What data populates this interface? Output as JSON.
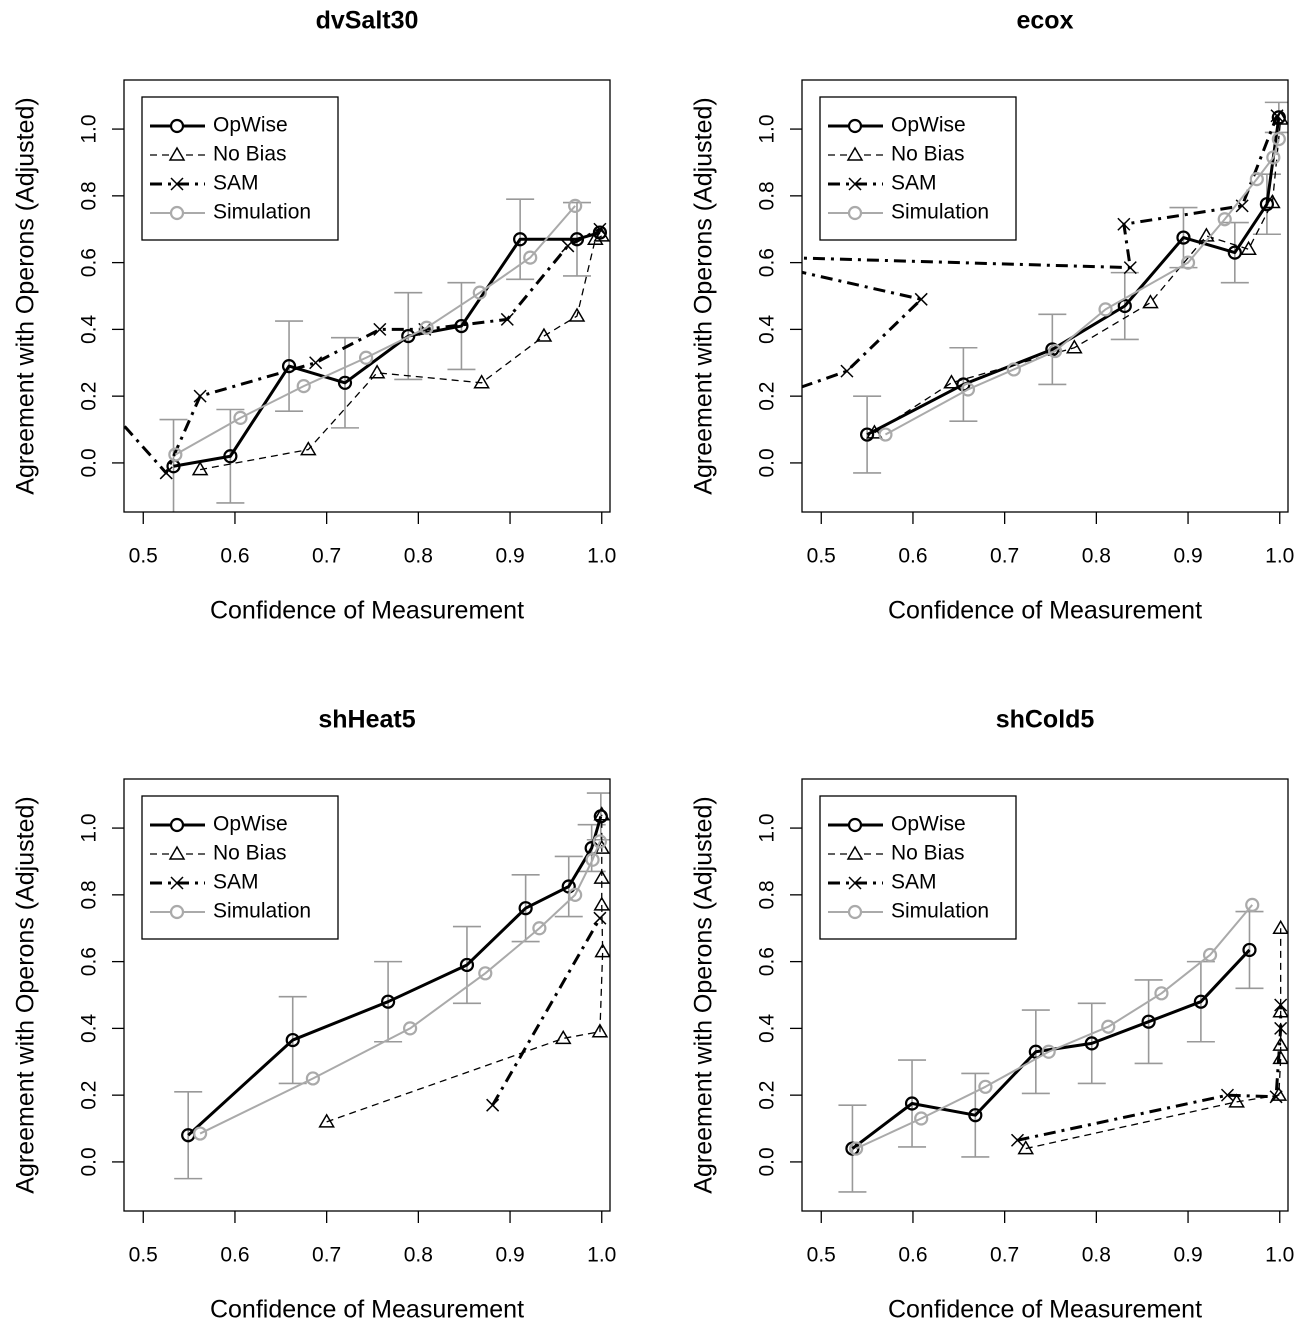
{
  "chart_data": [
    {
      "type": "line",
      "title": "dvSalt30",
      "x_label": "Confidence of Measurement",
      "y_label": "Agreement with Operons (Adjusted)",
      "xlim": [
        0.479,
        1.009
      ],
      "ylim": [
        -0.147,
        1.147
      ],
      "xticks": [
        0.5,
        0.6,
        0.7,
        0.8,
        0.9,
        {
          "value": 1,
          "label": "1.0"
        }
      ],
      "yticks": [
        {
          "value": 0,
          "label": "0.0"
        },
        0.2,
        0.4,
        0.6,
        0.8,
        {
          "value": 1,
          "label": "1.0"
        }
      ],
      "legend": "top-left",
      "error_color": "#999999",
      "series": [
        {
          "name": "OpWise",
          "color": "#000000",
          "line_style": "solid",
          "line_width": 3,
          "marker": "circle",
          "x": [
            0.533,
            0.595,
            0.659,
            0.72,
            0.789,
            0.847,
            0.911,
            0.973,
            0.998
          ],
          "values": [
            -0.01,
            0.02,
            0.29,
            0.24,
            0.38,
            0.41,
            0.67,
            0.67,
            0.69
          ],
          "errors": [
            0.14,
            0.14,
            0.135,
            0.135,
            0.13,
            0.13,
            0.12,
            0.11,
            null
          ]
        },
        {
          "name": "No Bias",
          "color": "#000000",
          "line_style": "dashed",
          "line_width": 1.3,
          "marker": "triangle",
          "x": [
            0.562,
            0.68,
            0.755,
            0.869,
            0.937,
            0.973,
            0.993,
            1.0
          ],
          "values": [
            -0.02,
            0.04,
            0.27,
            0.24,
            0.38,
            0.44,
            0.67,
            0.68
          ]
        },
        {
          "name": "SAM",
          "color": "#000000",
          "line_style": "dotdash",
          "line_width": 3,
          "marker": "x",
          "x": [
            0.46,
            0.525,
            0.562,
            0.688,
            0.758,
            0.807,
            0.897,
            0.963,
            0.998
          ],
          "values": [
            0.17,
            -0.03,
            0.2,
            0.3,
            0.4,
            0.4,
            0.43,
            0.65,
            0.7
          ]
        },
        {
          "name": "Simulation",
          "color": "#aaaaaa",
          "line_style": "solid",
          "line_width": 2,
          "marker": "circle",
          "x": [
            0.535,
            0.606,
            0.675,
            0.743,
            0.809,
            0.867,
            0.922,
            0.971
          ],
          "values": [
            0.025,
            0.135,
            0.23,
            0.315,
            0.405,
            0.51,
            0.615,
            0.77
          ]
        }
      ]
    },
    {
      "type": "line",
      "title": "ecox",
      "x_label": "Confidence of Measurement",
      "y_label": "Agreement with Operons (Adjusted)",
      "xlim": [
        0.479,
        1.009
      ],
      "ylim": [
        -0.147,
        1.147
      ],
      "xticks": [
        0.5,
        0.6,
        0.7,
        0.8,
        0.9,
        {
          "value": 1,
          "label": "1.0"
        }
      ],
      "yticks": [
        {
          "value": 0,
          "label": "0.0"
        },
        0.2,
        0.4,
        0.6,
        0.8,
        {
          "value": 1,
          "label": "1.0"
        }
      ],
      "legend": "top-left",
      "error_color": "#999999",
      "series": [
        {
          "name": "OpWise",
          "color": "#000000",
          "line_style": "solid",
          "line_width": 3,
          "marker": "circle",
          "x": [
            0.55,
            0.655,
            0.752,
            0.831,
            0.895,
            0.951,
            0.986,
            0.999
          ],
          "values": [
            0.085,
            0.235,
            0.34,
            0.47,
            0.675,
            0.63,
            0.775,
            1.035
          ],
          "errors": [
            0.115,
            0.11,
            0.105,
            0.1,
            0.09,
            0.09,
            0.09,
            0.045
          ]
        },
        {
          "name": "No Bias",
          "color": "#000000",
          "line_style": "dashed",
          "line_width": 1.3,
          "marker": "triangle",
          "x": [
            0.558,
            0.642,
            0.776,
            0.859,
            0.92,
            0.966,
            0.992,
            1.001
          ],
          "values": [
            0.09,
            0.24,
            0.345,
            0.48,
            0.68,
            0.64,
            0.78,
            1.03
          ]
        },
        {
          "name": "SAM",
          "color": "#000000",
          "line_style": "dotdash",
          "line_width": 3,
          "marker": "x",
          "x": [
            0.45,
            0.528,
            0.609,
            0.4,
            0.837,
            0.83,
            0.959,
            0.997
          ],
          "values": [
            0.2,
            0.275,
            0.49,
            0.62,
            0.585,
            0.715,
            0.77,
            1.04
          ]
        },
        {
          "name": "Simulation",
          "color": "#aaaaaa",
          "line_style": "solid",
          "line_width": 2,
          "marker": "circle",
          "x": [
            0.57,
            0.66,
            0.71,
            0.755,
            0.81,
            0.9,
            0.94,
            0.975,
            0.993,
            0.999
          ],
          "values": [
            0.085,
            0.22,
            0.28,
            0.335,
            0.46,
            0.6,
            0.73,
            0.85,
            0.915,
            0.97
          ]
        }
      ]
    },
    {
      "type": "line",
      "title": "shHeat5",
      "x_label": "Confidence of Measurement",
      "y_label": "Agreement with Operons (Adjusted)",
      "xlim": [
        0.479,
        1.009
      ],
      "ylim": [
        -0.147,
        1.147
      ],
      "xticks": [
        0.5,
        0.6,
        0.7,
        0.8,
        0.9,
        {
          "value": 1,
          "label": "1.0"
        }
      ],
      "yticks": [
        {
          "value": 0,
          "label": "0.0"
        },
        0.2,
        0.4,
        0.6,
        0.8,
        {
          "value": 1,
          "label": "1.0"
        }
      ],
      "legend": "top-left",
      "error_color": "#999999",
      "series": [
        {
          "name": "OpWise",
          "color": "#000000",
          "line_style": "solid",
          "line_width": 3,
          "marker": "circle",
          "x": [
            0.549,
            0.663,
            0.767,
            0.853,
            0.917,
            0.964,
            0.989,
            0.999
          ],
          "values": [
            0.08,
            0.365,
            0.48,
            0.59,
            0.76,
            0.825,
            0.94,
            1.035
          ],
          "errors": [
            0.13,
            0.13,
            0.12,
            0.115,
            0.1,
            0.09,
            0.07,
            0.07
          ]
        },
        {
          "name": "No Bias",
          "color": "#000000",
          "line_style": "dashed",
          "line_width": 1.3,
          "marker": "triangle",
          "x": [
            0.7,
            0.958,
            0.998,
            1.001,
            1.0,
            1.0,
            1.0,
            1.0
          ],
          "values": [
            0.12,
            0.37,
            0.39,
            0.63,
            0.77,
            0.85,
            0.94,
            1.04
          ]
        },
        {
          "name": "SAM",
          "color": "#000000",
          "line_style": "dotdash",
          "line_width": 3,
          "marker": "x",
          "x": [
            0.881,
            0.998
          ],
          "values": [
            0.17,
            0.73
          ]
        },
        {
          "name": "Simulation",
          "color": "#aaaaaa",
          "line_style": "solid",
          "line_width": 2,
          "marker": "circle",
          "x": [
            0.562,
            0.685,
            0.791,
            0.873,
            0.932,
            0.971,
            0.99,
            0.998
          ],
          "values": [
            0.085,
            0.25,
            0.4,
            0.565,
            0.7,
            0.8,
            0.905,
            0.96
          ]
        }
      ]
    },
    {
      "type": "line",
      "title": "shCold5",
      "x_label": "Confidence of Measurement",
      "y_label": "Agreement with Operons (Adjusted)",
      "xlim": [
        0.479,
        1.009
      ],
      "ylim": [
        -0.147,
        1.147
      ],
      "xticks": [
        0.5,
        0.6,
        0.7,
        0.8,
        0.9,
        {
          "value": 1,
          "label": "1.0"
        }
      ],
      "yticks": [
        {
          "value": 0,
          "label": "0.0"
        },
        0.2,
        0.4,
        0.6,
        0.8,
        {
          "value": 1,
          "label": "1.0"
        }
      ],
      "legend": "top-left",
      "error_color": "#999999",
      "series": [
        {
          "name": "OpWise",
          "color": "#000000",
          "line_style": "solid",
          "line_width": 3,
          "marker": "circle",
          "x": [
            0.534,
            0.599,
            0.668,
            0.734,
            0.795,
            0.857,
            0.914,
            0.967
          ],
          "values": [
            0.04,
            0.175,
            0.14,
            0.33,
            0.355,
            0.42,
            0.48,
            0.635
          ],
          "errors": [
            0.13,
            0.13,
            0.125,
            0.125,
            0.12,
            0.125,
            0.12,
            0.115
          ]
        },
        {
          "name": "No Bias",
          "color": "#000000",
          "line_style": "dashed",
          "line_width": 1.3,
          "marker": "triangle",
          "x": [
            0.723,
            0.953,
            0.999,
            1.001,
            1.001,
            1.001,
            1.001
          ],
          "values": [
            0.04,
            0.18,
            0.2,
            0.31,
            0.35,
            0.45,
            0.7
          ]
        },
        {
          "name": "SAM",
          "color": "#000000",
          "line_style": "dotdash",
          "line_width": 3,
          "marker": "x",
          "x": [
            0.714,
            0.943,
            0.996,
            1.001,
            1.001
          ],
          "values": [
            0.065,
            0.2,
            0.195,
            0.4,
            0.47
          ]
        },
        {
          "name": "Simulation",
          "color": "#aaaaaa",
          "line_style": "solid",
          "line_width": 2,
          "marker": "circle",
          "x": [
            0.538,
            0.609,
            0.679,
            0.748,
            0.813,
            0.871,
            0.924,
            0.97
          ],
          "values": [
            0.04,
            0.13,
            0.225,
            0.33,
            0.405,
            0.505,
            0.62,
            0.77
          ]
        }
      ]
    }
  ]
}
